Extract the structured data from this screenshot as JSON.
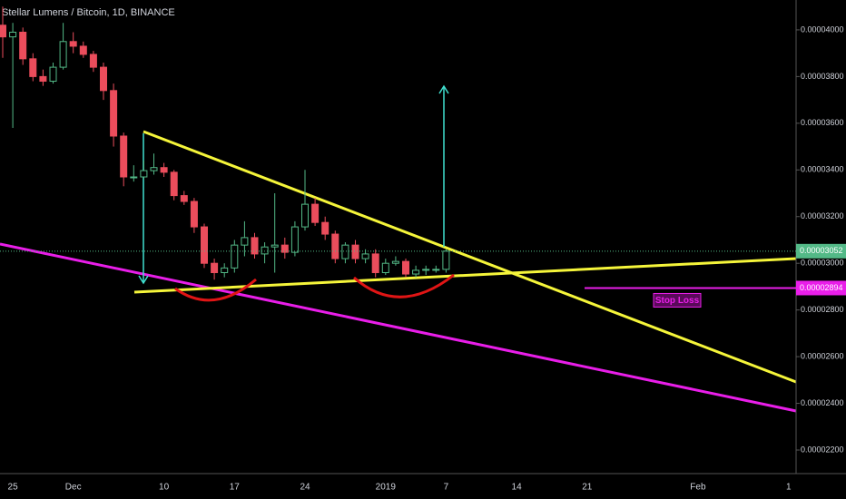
{
  "chart_data": {
    "type": "candlestick",
    "title": "Stellar Lumens / Bitcoin, 1D, BINANCE",
    "categories": [
      null,
      "25",
      null,
      null,
      null,
      null,
      null,
      "Dec",
      null,
      null,
      null,
      null,
      null,
      null,
      null,
      null,
      "10",
      null,
      null,
      null,
      null,
      null,
      null,
      "17",
      null,
      null,
      null,
      null,
      null,
      null,
      "24",
      null,
      null,
      null,
      null,
      null,
      null,
      null,
      "2019",
      null,
      null,
      null,
      null,
      null,
      "7",
      null,
      null,
      null,
      null,
      null,
      null,
      "14",
      null,
      null,
      null,
      null,
      null,
      null,
      "21",
      null,
      null,
      null,
      null,
      null,
      null,
      null,
      null,
      null,
      null,
      "Feb",
      null,
      null,
      null,
      null,
      null,
      null,
      null,
      null,
      "1"
    ],
    "open": [
      4.02e-05,
      3.97e-05,
      3.99e-05,
      3.876e-05,
      3.8e-05,
      3.78e-05,
      3.84e-05,
      3.95e-05,
      3.93e-05,
      3.895e-05,
      3.84e-05,
      3.74e-05,
      3.545e-05,
      3.37e-05,
      3.37e-05,
      3.397e-05,
      3.41e-05,
      3.39e-05,
      3.29e-05,
      3.265e-05,
      3.156e-05,
      3e-05,
      2.96e-05,
      2.98e-05,
      3.078e-05,
      3.11e-05,
      3.04e-05,
      3.07e-05,
      3.078e-05,
      3.047e-05,
      3.156e-05,
      3.253e-05,
      3.175e-05,
      3.125e-05,
      3.02e-05,
      3.078e-05,
      3.02e-05,
      3.04e-05,
      2.96e-05,
      3e-05,
      3.008e-05,
      2.954e-05,
      2.97e-05,
      2.974e-05,
      2.974e-05,
      null,
      null,
      null,
      null,
      null,
      null,
      null,
      null,
      null,
      null,
      null,
      null,
      null,
      null,
      null,
      null,
      null,
      null,
      null,
      null,
      null,
      null,
      null,
      null,
      null,
      null,
      null,
      null,
      null,
      null,
      null,
      null,
      null,
      null
    ],
    "high": [
      4.1e-05,
      4.03e-05,
      4.01e-05,
      3.9e-05,
      3.83e-05,
      3.86e-05,
      4.03e-05,
      3.99e-05,
      3.95e-05,
      3.91e-05,
      3.86e-05,
      3.77e-05,
      3.56e-05,
      3.42e-05,
      3.44e-05,
      3.47e-05,
      3.43e-05,
      3.4e-05,
      3.31e-05,
      3.28e-05,
      3.17e-05,
      3.02e-05,
      3e-05,
      3.1e-05,
      3.18e-05,
      3.13e-05,
      3.09e-05,
      3.3e-05,
      3.11e-05,
      3.18e-05,
      3.4e-05,
      3.28e-05,
      3.2e-05,
      3.14e-05,
      3.09e-05,
      3.1e-05,
      3.06e-05,
      3.06e-05,
      3.02e-05,
      3.03e-05,
      3.02e-05,
      2.99e-05,
      2.99e-05,
      2.99e-05,
      3.06e-05,
      null,
      null,
      null,
      null,
      null,
      null,
      null,
      null,
      null,
      null,
      null,
      null,
      null,
      null,
      null,
      null,
      null,
      null,
      null,
      null,
      null,
      null,
      null,
      null,
      null,
      null,
      null,
      null,
      null,
      null,
      null,
      null,
      null,
      null
    ],
    "low": [
      3.88e-05,
      3.58e-05,
      3.85e-05,
      3.78e-05,
      3.76e-05,
      3.77e-05,
      3.83e-05,
      3.9e-05,
      3.88e-05,
      3.82e-05,
      3.7e-05,
      3.5e-05,
      3.33e-05,
      3.35e-05,
      3.36e-05,
      3.38e-05,
      3.37e-05,
      3.27e-05,
      3.25e-05,
      3.13e-05,
      2.98e-05,
      2.93e-05,
      2.94e-05,
      2.96e-05,
      3.03e-05,
      3.02e-05,
      3e-05,
      2.96e-05,
      3.02e-05,
      3.03e-05,
      3.14e-05,
      3.16e-05,
      3.1e-05,
      3e-05,
      3e-05,
      3e-05,
      3e-05,
      2.94e-05,
      2.95e-05,
      2.99e-05,
      2.94e-05,
      2.94e-05,
      2.95e-05,
      2.96e-05,
      2.96e-05,
      null,
      null,
      null,
      null,
      null,
      null,
      null,
      null,
      null,
      null,
      null,
      null,
      null,
      null,
      null,
      null,
      null,
      null,
      null,
      null,
      null,
      null,
      null,
      null,
      null,
      null,
      null,
      null,
      null,
      null,
      null,
      null,
      null,
      null
    ],
    "close": [
      3.97e-05,
      3.99e-05,
      3.876e-05,
      3.8e-05,
      3.78e-05,
      3.84e-05,
      3.95e-05,
      3.93e-05,
      3.895e-05,
      3.84e-05,
      3.74e-05,
      3.545e-05,
      3.37e-05,
      3.37e-05,
      3.397e-05,
      3.41e-05,
      3.39e-05,
      3.29e-05,
      3.265e-05,
      3.156e-05,
      3e-05,
      2.96e-05,
      2.98e-05,
      3.078e-05,
      3.11e-05,
      3.04e-05,
      3.07e-05,
      3.078e-05,
      3.047e-05,
      3.156e-05,
      3.253e-05,
      3.175e-05,
      3.125e-05,
      3.02e-05,
      3.078e-05,
      3.02e-05,
      3.04e-05,
      2.96e-05,
      3e-05,
      3.008e-05,
      2.954e-05,
      2.97e-05,
      2.974e-05,
      2.974e-05,
      3.052e-05,
      null,
      null,
      null,
      null,
      null,
      null,
      null,
      null,
      null,
      null,
      null,
      null,
      null,
      null,
      null,
      null,
      null,
      null,
      null,
      null,
      null,
      null,
      null,
      null,
      null,
      null,
      null,
      null,
      null,
      null,
      null,
      null,
      null,
      null
    ],
    "up_color": "#53b987",
    "down_color": "#eb4d5c",
    "ylim": [
      2.099e-05,
      4.128e-05
    ],
    "yticks": [
      {
        "value": 2.2e-05,
        "label": "0.00002200"
      },
      {
        "value": 2.4e-05,
        "label": "0.00002400"
      },
      {
        "value": 2.6e-05,
        "label": "0.00002600"
      },
      {
        "value": 2.8e-05,
        "label": "0.00002800"
      },
      {
        "value": 3e-05,
        "label": "0.00003000"
      },
      {
        "value": 3.2e-05,
        "label": "0.00003200"
      },
      {
        "value": 3.4e-05,
        "label": "0.00003400"
      },
      {
        "value": 3.6e-05,
        "label": "0.00003600"
      },
      {
        "value": 3.8e-05,
        "label": "0.00003800"
      },
      {
        "value": 4e-05,
        "label": "0.00004000"
      }
    ],
    "grid": false,
    "last_price": {
      "value": 3.052e-05,
      "label": "0.00003052",
      "color": "#53b987"
    },
    "stop_loss": {
      "value": 2.894e-05,
      "label": "0.00002894",
      "text": "Stop Loss",
      "color": "#e91ee9"
    }
  }
}
